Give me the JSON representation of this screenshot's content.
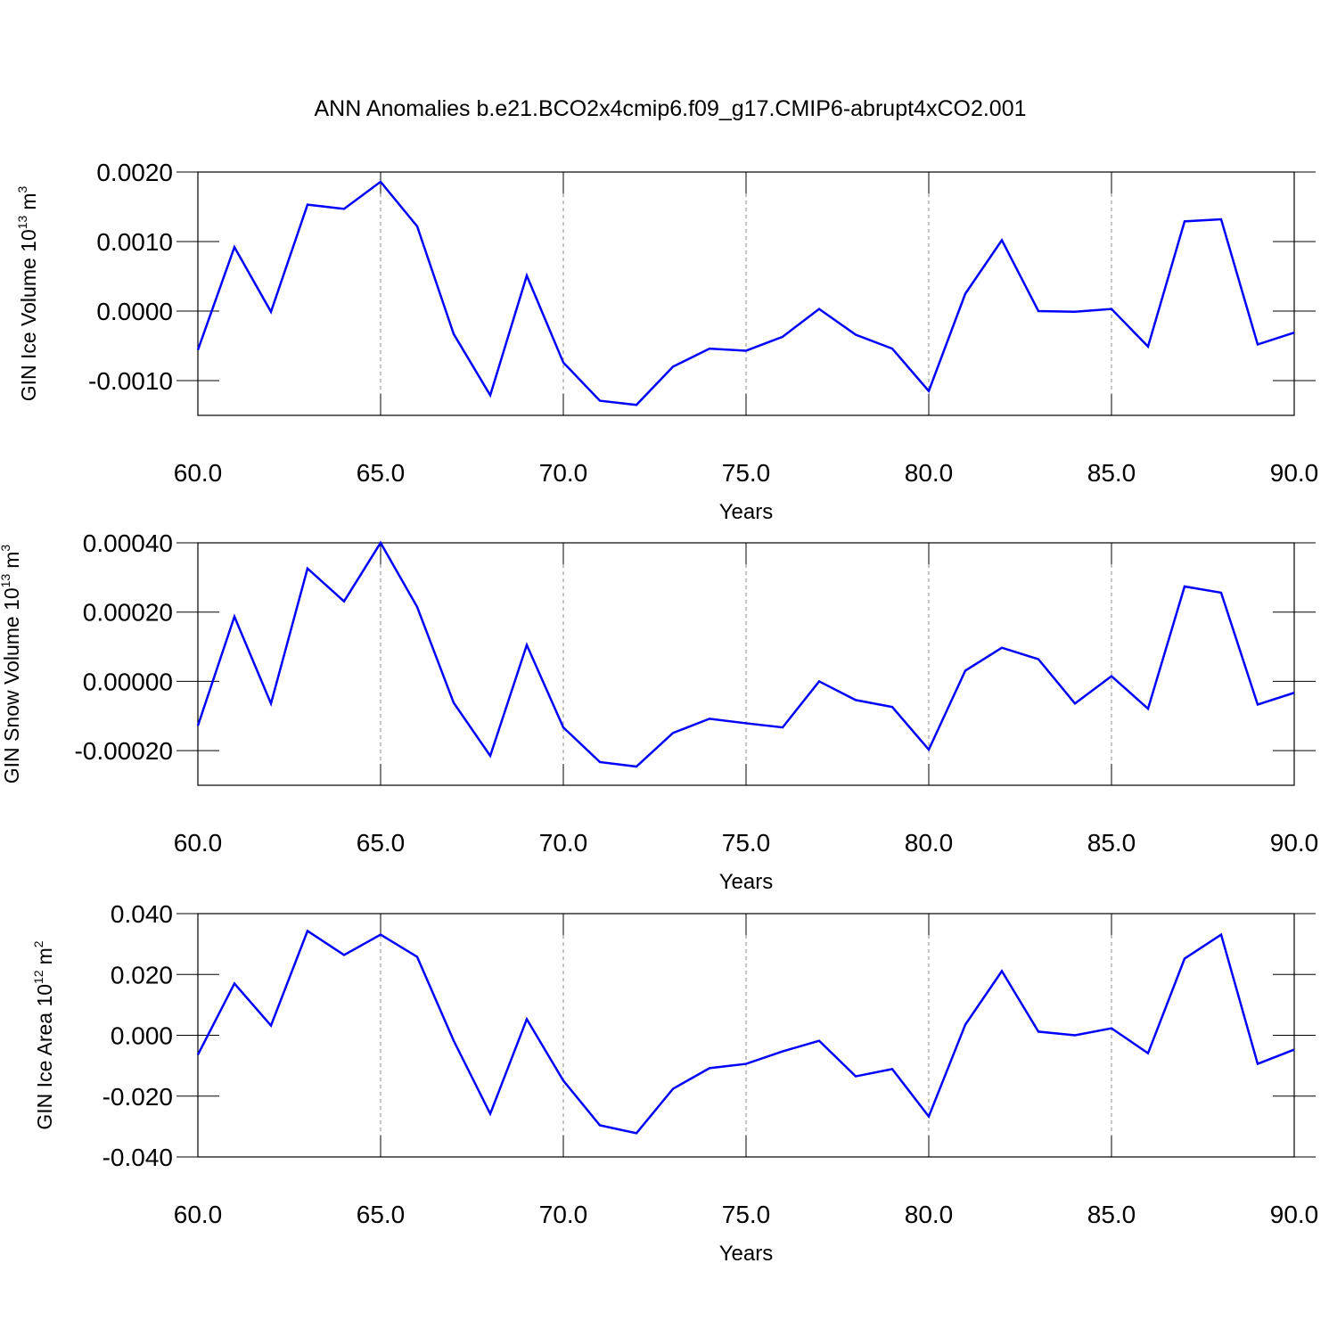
{
  "title": "ANN Anomalies b.e21.BCO2x4cmip6.f09_g17.CMIP6-abrupt4xCO2.001",
  "chart_data": [
    {
      "type": "line",
      "ylabel": [
        "GIN Ice Volume 10",
        "13",
        "m",
        "3"
      ],
      "xlabel": "Years",
      "x": [
        60,
        61,
        62,
        63,
        64,
        65,
        66,
        67,
        68,
        69,
        70,
        71,
        72,
        73,
        74,
        75,
        76,
        77,
        78,
        79,
        80,
        81,
        82,
        83,
        84,
        85,
        86,
        87,
        88,
        89,
        90
      ],
      "series": [
        {
          "color": "#0000ff",
          "values": [
            -0.00056,
            0.00092,
            -1e-05,
            0.00153,
            0.00147,
            0.00186,
            0.00122,
            -0.00033,
            -0.00121,
            0.00051,
            -0.00074,
            -0.00129,
            -0.00135,
            -0.0008,
            -0.00054,
            -0.00057,
            -0.00037,
            3e-05,
            -0.00034,
            -0.00054,
            -0.00115,
            0.00025,
            0.00102,
            0.0,
            -1e-05,
            3e-05,
            -0.00051,
            0.00129,
            0.00132,
            -0.00048,
            -0.00031
          ]
        }
      ],
      "xlim": [
        60,
        90
      ],
      "ylim": [
        -0.0015,
        0.002
      ],
      "xticks": [
        {
          "value": 60,
          "label": "60.0"
        },
        {
          "value": 65,
          "label": "65.0"
        },
        {
          "value": 70,
          "label": "70.0"
        },
        {
          "value": 75,
          "label": "75.0"
        },
        {
          "value": 80,
          "label": "80.0"
        },
        {
          "value": 85,
          "label": "85.0"
        },
        {
          "value": 90,
          "label": "90.0"
        }
      ],
      "yticks": [
        {
          "value": -0.001,
          "label": "-0.0010"
        },
        {
          "value": 0,
          "label": "0.0000"
        },
        {
          "value": 0.001,
          "label": "0.0010"
        },
        {
          "value": 0.002,
          "label": "0.0020"
        }
      ],
      "grid": "x"
    },
    {
      "type": "line",
      "ylabel": [
        "GIN Snow Volume 10",
        "13",
        "m",
        "3"
      ],
      "xlabel": "Years",
      "x": [
        60,
        61,
        62,
        63,
        64,
        65,
        66,
        67,
        68,
        69,
        70,
        71,
        72,
        73,
        74,
        75,
        76,
        77,
        78,
        79,
        80,
        81,
        82,
        83,
        84,
        85,
        86,
        87,
        88,
        89,
        90
      ],
      "series": [
        {
          "color": "#0000ff",
          "values": [
            -0.000128,
            0.000187,
            -6.4e-05,
            0.000326,
            0.000231,
            0.0004,
            0.000215,
            -6.2e-05,
            -0.000215,
            0.000105,
            -0.000133,
            -0.000233,
            -0.000246,
            -0.000149,
            -0.000108,
            -0.000121,
            -0.000133,
            0.0,
            -5.4e-05,
            -7.4e-05,
            -0.000197,
            3.1e-05,
            9.7e-05,
            6.4e-05,
            -6.4e-05,
            1.5e-05,
            -7.9e-05,
            0.000274,
            0.000256,
            -6.7e-05,
            -3.3e-05
          ]
        }
      ],
      "xlim": [
        60,
        90
      ],
      "ylim": [
        -0.0003,
        0.0004
      ],
      "xticks": [
        {
          "value": 60,
          "label": "60.0"
        },
        {
          "value": 65,
          "label": "65.0"
        },
        {
          "value": 70,
          "label": "70.0"
        },
        {
          "value": 75,
          "label": "75.0"
        },
        {
          "value": 80,
          "label": "80.0"
        },
        {
          "value": 85,
          "label": "85.0"
        },
        {
          "value": 90,
          "label": "90.0"
        }
      ],
      "yticks": [
        {
          "value": -0.0002,
          "label": "-0.00020"
        },
        {
          "value": 0,
          "label": "0.00000"
        },
        {
          "value": 0.0002,
          "label": "0.00020"
        },
        {
          "value": 0.0004,
          "label": "0.00040"
        }
      ],
      "grid": "x"
    },
    {
      "type": "line",
      "ylabel": [
        "GIN Ice Area 10",
        "12",
        "m",
        "2"
      ],
      "xlabel": "Years",
      "x": [
        60,
        61,
        62,
        63,
        64,
        65,
        66,
        67,
        68,
        69,
        70,
        71,
        72,
        73,
        74,
        75,
        76,
        77,
        78,
        79,
        80,
        81,
        82,
        83,
        84,
        85,
        86,
        87,
        88,
        89,
        90
      ],
      "series": [
        {
          "color": "#0000ff",
          "values": [
            -0.0064,
            0.017,
            0.0032,
            0.0343,
            0.0264,
            0.0331,
            0.0258,
            -0.0018,
            -0.0258,
            0.0053,
            -0.0149,
            -0.0296,
            -0.0322,
            -0.0176,
            -0.0108,
            -0.0094,
            -0.0053,
            -0.0018,
            -0.0135,
            -0.0111,
            -0.0267,
            0.0035,
            0.0211,
            0.0012,
            0.0,
            0.0023,
            -0.0059,
            0.0252,
            0.0331,
            -0.0094,
            -0.0047
          ]
        }
      ],
      "xlim": [
        60,
        90
      ],
      "ylim": [
        -0.04,
        0.04
      ],
      "xticks": [
        {
          "value": 60,
          "label": "60.0"
        },
        {
          "value": 65,
          "label": "65.0"
        },
        {
          "value": 70,
          "label": "70.0"
        },
        {
          "value": 75,
          "label": "75.0"
        },
        {
          "value": 80,
          "label": "80.0"
        },
        {
          "value": 85,
          "label": "85.0"
        },
        {
          "value": 90,
          "label": "90.0"
        }
      ],
      "yticks": [
        {
          "value": -0.04,
          "label": "-0.040"
        },
        {
          "value": -0.02,
          "label": "-0.020"
        },
        {
          "value": 0,
          "label": "0.000"
        },
        {
          "value": 0.02,
          "label": "0.020"
        },
        {
          "value": 0.04,
          "label": "0.040"
        }
      ],
      "grid": "x"
    }
  ]
}
